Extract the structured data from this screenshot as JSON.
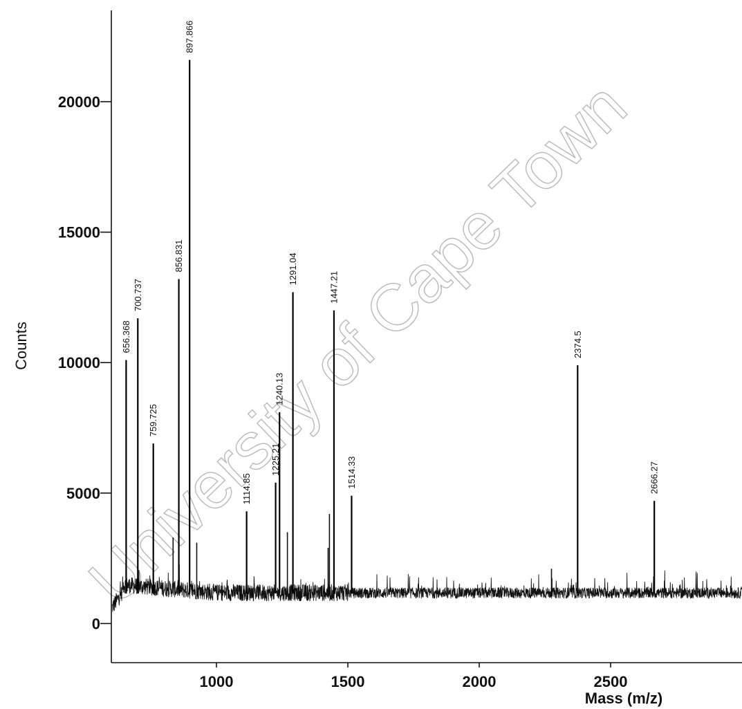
{
  "chart_data": {
    "type": "line",
    "xlabel": "Mass (m/z)",
    "ylabel": "Counts",
    "xlim": [
      600,
      3000
    ],
    "ylim": [
      -1500,
      23500
    ],
    "x_ticks": [
      1000,
      1500,
      2000,
      2500
    ],
    "y_ticks": [
      0,
      5000,
      10000,
      15000,
      20000
    ],
    "x_tick_labels": [
      "1000",
      "1500",
      "2000",
      "2500"
    ],
    "y_tick_labels": [
      "0",
      "5000",
      "10000",
      "15000",
      "20000"
    ],
    "grid": false,
    "baseline_counts": 1150,
    "peaks": [
      {
        "mz": 656.368,
        "label": "656.368",
        "counts": 10100
      },
      {
        "mz": 700.737,
        "label": "700.737",
        "counts": 11700
      },
      {
        "mz": 759.725,
        "label": "759.725",
        "counts": 6900
      },
      {
        "mz": 856.831,
        "label": "856.831",
        "counts": 13200
      },
      {
        "mz": 897.866,
        "label": "897.866",
        "counts": 21600
      },
      {
        "mz": 1114.85,
        "label": "1114.85",
        "counts": 4300
      },
      {
        "mz": 1225.21,
        "label": "1225.21",
        "counts": 5400
      },
      {
        "mz": 1240.13,
        "label": "1240.13",
        "counts": 8100
      },
      {
        "mz": 1291.04,
        "label": "1291.04",
        "counts": 12700
      },
      {
        "mz": 1447.21,
        "label": "1447.21",
        "counts": 12000
      },
      {
        "mz": 1514.33,
        "label": "1514.33",
        "counts": 4900
      },
      {
        "mz": 2374.5,
        "label": "2374.5",
        "counts": 9900
      },
      {
        "mz": 2666.27,
        "label": "2666.27",
        "counts": 4700
      }
    ],
    "minor_peaks": [
      {
        "mz": 835,
        "counts": 3300
      },
      {
        "mz": 925,
        "counts": 3100
      },
      {
        "mz": 1270,
        "counts": 3500
      },
      {
        "mz": 1425,
        "counts": 2900
      },
      {
        "mz": 1430,
        "counts": 4200
      },
      {
        "mz": 2275,
        "counts": 2100
      }
    ]
  },
  "watermark": "University of Cape Town"
}
